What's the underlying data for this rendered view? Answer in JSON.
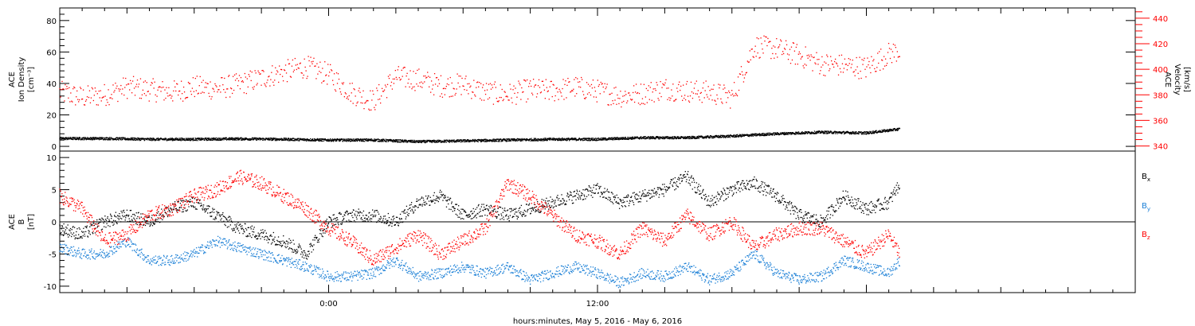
{
  "chart_data": [
    {
      "type": "scatter",
      "ylabel_left": [
        "ACE",
        "Ion Density",
        "[cm⁻³]"
      ],
      "ylabel_right": [
        "ACE",
        "Velocity",
        "[km/s]"
      ],
      "yticks_left": [
        "0",
        "20",
        "40",
        "60",
        "80"
      ],
      "yticks_right": [
        "340",
        "360",
        "380",
        "400",
        "420",
        "440"
      ],
      "ylim_left": [
        -3,
        88
      ],
      "ylim_right": [
        336,
        448
      ],
      "series": [
        {
          "color": "#000000",
          "axis": "left",
          "hours": [
            0,
            2,
            4,
            6,
            8,
            10,
            12,
            14,
            16,
            18,
            20,
            22,
            24,
            26,
            28,
            30,
            32,
            34,
            36,
            37.5
          ],
          "values": [
            5,
            5,
            4.5,
            4.5,
            4.8,
            4.5,
            4,
            4,
            3,
            3.5,
            4,
            4.5,
            4.5,
            5.5,
            5.5,
            6.5,
            8,
            9,
            8.5,
            11
          ]
        },
        {
          "color": "#ff0000",
          "axis": "right",
          "hours": [
            0,
            1,
            2,
            3,
            4,
            5,
            6,
            7,
            8,
            9,
            10,
            11,
            12,
            13,
            14,
            15,
            16,
            17,
            18,
            19,
            20,
            21,
            22,
            23,
            24,
            25,
            26,
            27,
            28,
            29,
            30,
            31,
            32,
            33,
            34,
            35,
            36,
            37,
            37.5
          ],
          "values": [
            382,
            378,
            380,
            386,
            384,
            382,
            386,
            385,
            388,
            393,
            398,
            402,
            396,
            382,
            375,
            394,
            392,
            387,
            388,
            382,
            380,
            384,
            383,
            386,
            383,
            379,
            381,
            385,
            383,
            382,
            378,
            418,
            416,
            411,
            404,
            403,
            401,
            412,
            415
          ]
        }
      ]
    },
    {
      "type": "scatter",
      "ylabel_left": [
        "ACE",
        "B",
        "[nT]"
      ],
      "yticks_left": [
        "-10",
        "-5",
        "0",
        "5",
        "10"
      ],
      "ylim_left": [
        -11,
        11
      ],
      "zero_line": true,
      "series": [
        {
          "name": "Bx",
          "color": "#000000",
          "hours": [
            0,
            1,
            2,
            3,
            4,
            5,
            6,
            7,
            8,
            9,
            10,
            11,
            12,
            13,
            14,
            15,
            16,
            17,
            18,
            19,
            20,
            21,
            22,
            23,
            24,
            25,
            26,
            27,
            28,
            29,
            30,
            31,
            32,
            33,
            34,
            35,
            36,
            37,
            37.5
          ],
          "values": [
            -1,
            -2,
            0,
            1,
            0,
            2,
            3,
            1,
            -1,
            -2,
            -3,
            -5,
            0,
            1,
            1,
            0,
            3,
            4,
            1,
            2,
            1,
            2,
            3,
            4,
            5,
            3,
            4,
            5,
            7,
            3,
            5,
            6,
            4,
            1,
            0,
            4,
            2,
            3,
            6
          ]
        },
        {
          "name": "By",
          "color": "#1a7fd6",
          "hours": [
            0,
            1,
            2,
            3,
            4,
            5,
            6,
            7,
            8,
            9,
            10,
            11,
            12,
            13,
            14,
            15,
            16,
            17,
            18,
            19,
            20,
            21,
            22,
            23,
            24,
            25,
            26,
            27,
            28,
            29,
            30,
            31,
            32,
            33,
            34,
            35,
            36,
            37,
            37.5
          ],
          "values": [
            -4,
            -5,
            -5,
            -3,
            -6,
            -6,
            -5,
            -3,
            -4,
            -5,
            -6,
            -7,
            -8.5,
            -8.5,
            -8,
            -6,
            -8.5,
            -8,
            -7,
            -8,
            -7,
            -9,
            -8,
            -7,
            -8,
            -9.5,
            -8,
            -8.5,
            -7,
            -9,
            -8,
            -5,
            -8,
            -9,
            -8.5,
            -6,
            -7,
            -8,
            -6
          ]
        },
        {
          "name": "Bz",
          "color": "#ff0000",
          "hours": [
            0,
            1,
            2,
            3,
            4,
            5,
            6,
            7,
            8,
            9,
            10,
            11,
            12,
            13,
            14,
            15,
            16,
            17,
            18,
            19,
            20,
            21,
            22,
            23,
            24,
            25,
            26,
            27,
            28,
            29,
            30,
            31,
            32,
            33,
            34,
            35,
            36,
            37,
            37.5
          ],
          "values": [
            4,
            2,
            -3,
            -2,
            1,
            2,
            4,
            5,
            7,
            6,
            4,
            2,
            -1,
            -3,
            -6,
            -4,
            -2,
            -5,
            -3,
            -1,
            6,
            4,
            1,
            -2,
            -3,
            -5,
            -1,
            -3,
            1,
            -2,
            0,
            -4,
            -2,
            -1,
            -1,
            -3,
            -5,
            -2,
            -5
          ]
        }
      ],
      "legend": [
        "B",
        "B",
        "B"
      ],
      "legend_subscripts": [
        "x",
        "y",
        "z"
      ],
      "legend_placement": "right"
    }
  ],
  "x_axis": {
    "major_ticks": [
      {
        "hour": 0,
        "label": ""
      },
      {
        "hour": 12,
        "label": "0:00"
      },
      {
        "hour": 24,
        "label": "12:00"
      }
    ],
    "range_hours": [
      0,
      48
    ],
    "xlabel": "hours:minutes, May  5, 2016 - May  6, 2016"
  }
}
